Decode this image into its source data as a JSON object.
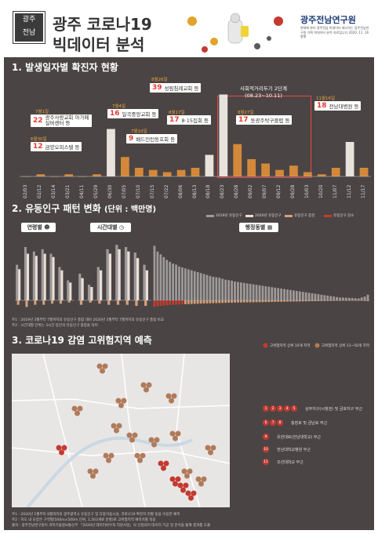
{
  "header": {
    "logo_text": [
      "광주",
      "전남"
    ],
    "title_line1": "광주 코로나19",
    "title_line2": "빅데이터 분석",
    "institute": "광주전남연구원",
    "institute_sub": "현재에 뿌리 광주전남 빅데이터 제시하는 광주전남연구원 기획 빅데이터 분석 자료입니다 2020. 11. 16 발행"
  },
  "section1": {
    "title": "1. 발생일자별 확진자 현황"
  },
  "section2": {
    "title": "2. 유동인구 패턴 변화",
    "unit": "(단위 : 백만명)",
    "tabs": [
      "연령별",
      "시간대별",
      "행정동별"
    ],
    "legend": [
      "2019년 유동인구",
      "2020년 유동인구",
      "유동인구 증감",
      "유동인구 감소"
    ],
    "notes": [
      "주1 : 2019년 3월부터 7월까지의 유동인구 총합 대비 2020년 3월부터 7월까지의 유동인구 총합 비교",
      "주2 : 시간대별 단위는 3시간 동안의 유동인구 총합을 의미"
    ]
  },
  "section3": {
    "title": "3. 코로나19 감염 고위험지역 예측",
    "legend": [
      "고위험지역 상위 10개 지역",
      "고위험지역 상위 11~50개 지역"
    ],
    "areas": [
      "상무지구(시청권) 및 금호지구 부근",
      "충장로 및 금남로 부근",
      "유한대로(전남대학교) 부근",
      "전남대학교병원 부근",
      "조선대학교 부근"
    ],
    "area_nums": [
      [
        "1",
        "2",
        "3",
        "4",
        "5"
      ],
      [
        "6",
        "7",
        "8"
      ],
      [
        "9"
      ],
      [
        "10"
      ],
      [
        "11"
      ]
    ],
    "notes": [
      "주1 : 2020년 1월부터 8월까지의 광주광역시 유동인구 및 다중이용시설, 코로나19 확진자 현황 등을 이용한 예측",
      "주2 : 지도 내 모양은 구역별(500m×500m 단위, 1,563개로 분할)로 고위험지역 예측치를 적용",
      "출처 : 광주전남연구원이 과학기술정보통신부 「2020년 데이터바우처 지원사업」의 선정되어 데이터 가공 및 분석을 통해 결과를 도출"
    ]
  },
  "chart_data": [
    {
      "type": "bar",
      "title": "1. 발생일자별 확진자 현황",
      "categories": [
        "02/03",
        "02/12",
        "03/14",
        "03/21",
        "04/11",
        "05/29",
        "06/30",
        "07/05",
        "07/10",
        "07/15",
        "07/22",
        "08/06",
        "08/13",
        "08/18",
        "08/23",
        "08/28",
        "09/02",
        "09/07",
        "09/12",
        "09/28",
        "10/03",
        "10/20",
        "11/07",
        "11/12",
        "11/17"
      ],
      "values": [
        0,
        1,
        0,
        1,
        0,
        1,
        22,
        9,
        4,
        3,
        2,
        3,
        4,
        10,
        38,
        15,
        8,
        6,
        3,
        5,
        2,
        1,
        4,
        16,
        4
      ],
      "annotations": [
        {
          "num": "12",
          "label": "금양오피스텔 등",
          "date": "6월30일"
        },
        {
          "num": "22",
          "label": "광주사랑교회 아가페실버센터 등",
          "date": "7월1일"
        },
        {
          "num": "16",
          "label": "일곡중앙교회 등",
          "date": "7월4일"
        },
        {
          "num": "9",
          "label": "배드민턴동호회 등",
          "date": "7월10일"
        },
        {
          "num": "39",
          "label": "성림침례교회 등",
          "date": "8월26일"
        },
        {
          "num": "17",
          "label": "8·15집회 등",
          "date": "8월17일"
        },
        {
          "num": "17",
          "label": "동광주탁구클럽 등",
          "date": "8월27일"
        },
        {
          "num": "18",
          "label": "전남대병원 등",
          "date": "11월16일"
        }
      ],
      "period": {
        "label": "사회적거리두기 2단계",
        "range": "(08.23~10.11)"
      }
    },
    {
      "type": "bar",
      "title": "연령별",
      "categories": [
        "10대",
        "20대",
        "30대",
        "40대",
        "50대",
        "60대",
        "70대+"
      ],
      "series": [
        {
          "name": "2019년 유동인구",
          "values": [
            3.2,
            4.8,
            4.4,
            4.6,
            4.2,
            3.0,
            1.8
          ]
        },
        {
          "name": "2020년 유동인구",
          "values": [
            2.8,
            4.2,
            4.0,
            4.2,
            3.9,
            2.7,
            1.6
          ]
        },
        {
          "name": "유동인구 증감",
          "values": [
            -0.4,
            -0.6,
            -0.4,
            -0.4,
            -0.3,
            -0.3,
            -0.2
          ]
        }
      ]
    },
    {
      "type": "bar",
      "title": "시간대별",
      "categories": [
        "00-03",
        "03-06",
        "06-09",
        "09-12",
        "12-15",
        "15-18",
        "18-21",
        "21-24"
      ],
      "series": [
        {
          "name": "2019년 유동인구",
          "values": [
            2.4,
            1.4,
            3.0,
            4.6,
            5.0,
            4.8,
            4.3,
            3.2
          ]
        },
        {
          "name": "2020년 유동인구",
          "values": [
            2.0,
            1.2,
            2.7,
            4.2,
            4.6,
            4.4,
            3.8,
            2.7
          ]
        },
        {
          "name": "유동인구 증감",
          "values": [
            -0.4,
            -0.2,
            -0.3,
            -0.4,
            -0.4,
            -0.4,
            -0.5,
            -0.5
          ]
        }
      ]
    },
    {
      "type": "bar",
      "title": "행정동별",
      "values": [
        5.8,
        5.2,
        4.9,
        4.6,
        4.3,
        4.1,
        3.9,
        3.8,
        3.6,
        3.5,
        3.4,
        3.3,
        3.2,
        3.1,
        3.0,
        2.9,
        2.8,
        2.7,
        2.6,
        2.5,
        2.45,
        2.4,
        2.3,
        2.2,
        2.15,
        2.1,
        2.0,
        1.95,
        1.9,
        1.85,
        1.8,
        1.75,
        1.7,
        1.65,
        1.6,
        1.55,
        1.5,
        1.45,
        1.4,
        1.35,
        1.3,
        1.25,
        1.2,
        1.15,
        1.1,
        1.05,
        1.0,
        0.95,
        0.9,
        0.85,
        0.8,
        0.75,
        0.7,
        0.65,
        0.6,
        0.55,
        0.5,
        0.45,
        0.4,
        0.35,
        0.3,
        0.3,
        0.28,
        0.26,
        0.24,
        0.22,
        0.2,
        0.3,
        0.4,
        0.6
      ]
    }
  ]
}
